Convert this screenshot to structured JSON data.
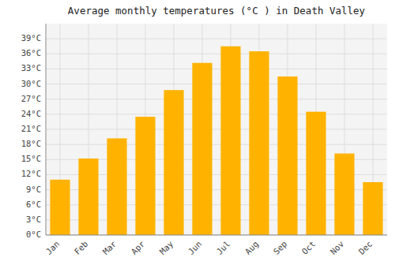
{
  "chart_data": {
    "type": "bar",
    "title": "Average monthly temperatures (°C ) in Death Valley",
    "categories": [
      "Jan",
      "Feb",
      "Mar",
      "Apr",
      "May",
      "Jun",
      "Jul",
      "Aug",
      "Sep",
      "Oct",
      "Nov",
      "Dec"
    ],
    "values": [
      11,
      15.2,
      19.2,
      23.5,
      28.8,
      34.2,
      37.5,
      36.5,
      31.5,
      24.5,
      16.2,
      10.5
    ],
    "color": "#FFB300",
    "ylim": [
      0,
      42
    ],
    "yticks": [
      {
        "value": 0,
        "label": "0°C"
      },
      {
        "value": 3,
        "label": "3°C"
      },
      {
        "value": 6,
        "label": "6°C"
      },
      {
        "value": 9,
        "label": "9°C"
      },
      {
        "value": 12,
        "label": "12°C"
      },
      {
        "value": 15,
        "label": "15°C"
      },
      {
        "value": 18,
        "label": "18°C"
      },
      {
        "value": 21,
        "label": "21°C"
      },
      {
        "value": 24,
        "label": "24°C"
      },
      {
        "value": 27,
        "label": "27°C"
      },
      {
        "value": 30,
        "label": "30°C"
      },
      {
        "value": 33,
        "label": "33°C"
      },
      {
        "value": 36,
        "label": "36°C"
      },
      {
        "value": 39,
        "label": "39°C"
      }
    ],
    "grid": true
  }
}
